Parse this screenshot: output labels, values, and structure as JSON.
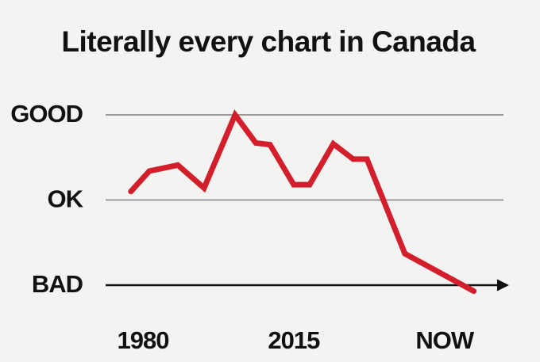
{
  "chart_data": {
    "type": "line",
    "title": "Literally every chart in Canada",
    "x": [
      1977.2,
      1981.5,
      1988.1,
      1994.2,
      2001.4,
      2006.2,
      2009.5,
      2015,
      2018.7,
      2024.2,
      2028.8,
      2032,
      2040.8,
      2056.8
    ],
    "series": [
      {
        "name": "Canada",
        "color": "#d21f2b",
        "values": [
          1.1,
          1.34,
          1.41,
          1.14,
          2.0,
          1.67,
          1.65,
          1.18,
          1.18,
          1.66,
          1.48,
          1.48,
          0.37,
          -0.07
        ]
      }
    ],
    "xlim": [
      1970,
      2060
    ],
    "xticks": [
      1980,
      2015,
      {
        "value": 2050,
        "label": "NOW"
      }
    ],
    "ylim": [
      -0.1,
      2.2
    ],
    "yticks": [
      {
        "value": 0,
        "label": "BAD"
      },
      {
        "value": 1,
        "label": "OK"
      },
      {
        "value": 2,
        "label": "GOOD"
      }
    ],
    "grid": true
  }
}
